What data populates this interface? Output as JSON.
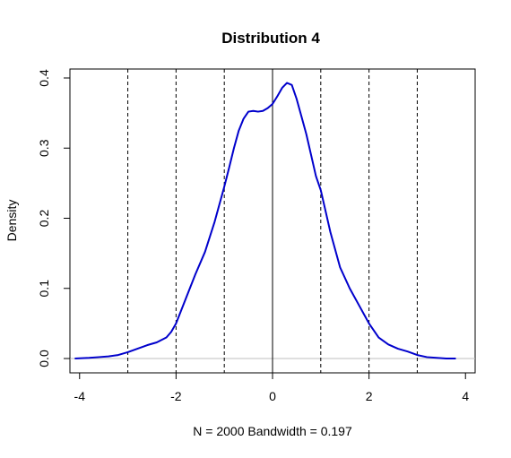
{
  "chart_data": {
    "type": "line",
    "title": "Distribution 4",
    "xlabel": "N = 2000   Bandwidth = 0.197",
    "ylabel": "Density",
    "xlim": [
      -4.2,
      4.2
    ],
    "ylim": [
      0,
      0.4
    ],
    "x_ticks": [
      -4,
      -2,
      0,
      2,
      4
    ],
    "x_tick_labels": [
      "-4",
      "-2",
      "0",
      "2",
      "4"
    ],
    "y_ticks": [
      0.0,
      0.1,
      0.2,
      0.3,
      0.4
    ],
    "y_tick_labels": [
      "0.0",
      "0.1",
      "0.2",
      "0.3",
      "0.4"
    ],
    "grid": false,
    "series": [
      {
        "color": "#0000cc",
        "x": [
          -4.1,
          -3.8,
          -3.6,
          -3.4,
          -3.2,
          -3.0,
          -2.8,
          -2.6,
          -2.4,
          -2.2,
          -2.1,
          -2.0,
          -1.8,
          -1.6,
          -1.4,
          -1.2,
          -1.0,
          -0.9,
          -0.8,
          -0.7,
          -0.6,
          -0.5,
          -0.4,
          -0.3,
          -0.2,
          -0.1,
          0.0,
          0.1,
          0.2,
          0.3,
          0.4,
          0.5,
          0.6,
          0.7,
          0.8,
          0.9,
          1.0,
          1.2,
          1.4,
          1.6,
          1.8,
          2.0,
          2.2,
          2.4,
          2.6,
          2.8,
          3.0,
          3.2,
          3.4,
          3.6,
          3.8
        ],
        "y": [
          0.0,
          0.001,
          0.002,
          0.003,
          0.005,
          0.009,
          0.014,
          0.019,
          0.023,
          0.03,
          0.038,
          0.05,
          0.085,
          0.12,
          0.152,
          0.195,
          0.245,
          0.272,
          0.3,
          0.325,
          0.342,
          0.352,
          0.353,
          0.352,
          0.353,
          0.357,
          0.363,
          0.374,
          0.386,
          0.393,
          0.39,
          0.37,
          0.345,
          0.32,
          0.29,
          0.26,
          0.24,
          0.18,
          0.13,
          0.1,
          0.075,
          0.05,
          0.03,
          0.02,
          0.014,
          0.01,
          0.005,
          0.002,
          0.001,
          0.0,
          0.0
        ]
      }
    ],
    "reference_lines": {
      "solid_x": [
        0
      ],
      "dashed_x": [
        -3,
        -2,
        -1,
        1,
        2,
        3
      ],
      "baseline_y": 0,
      "baseline_color": "#bfbfbf"
    }
  }
}
